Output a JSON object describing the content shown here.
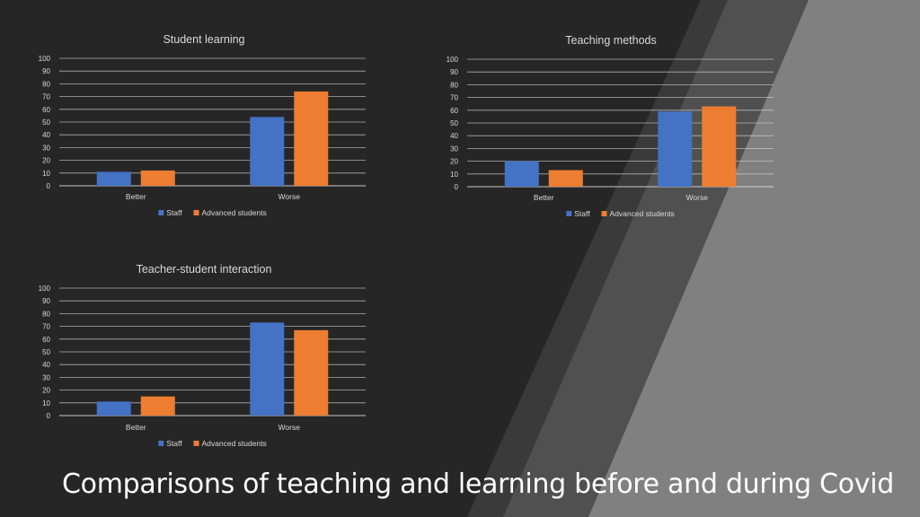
{
  "slide": {
    "title": "Comparisons of teaching and learning before and during Covid"
  },
  "colors": {
    "background": "#262626",
    "stripe_dark": "#3f3f3f",
    "stripe_mid": "#595959",
    "stripe_light": "#7f7f7f",
    "staff": "#4472c4",
    "advanced_students": "#ed7d31",
    "text": "#d9d9d9",
    "grid": "#d9d9d9"
  },
  "chart_data": [
    {
      "type": "bar",
      "title": "Student learning",
      "categories": [
        "Better",
        "Worse"
      ],
      "series": [
        {
          "name": "Staff",
          "values": [
            11,
            54
          ]
        },
        {
          "name": "Advanced students",
          "values": [
            12,
            74
          ]
        }
      ],
      "ylim": [
        0,
        100
      ],
      "yticks": [
        "0",
        "10",
        "20",
        "30",
        "40",
        "50",
        "60",
        "70",
        "80",
        "90",
        "100"
      ],
      "grid": true,
      "legend": "bottom"
    },
    {
      "type": "bar",
      "title": "Teaching methods",
      "categories": [
        "Better",
        "Worse"
      ],
      "series": [
        {
          "name": "Staff",
          "values": [
            20,
            59
          ]
        },
        {
          "name": "Advanced students",
          "values": [
            13,
            63
          ]
        }
      ],
      "ylim": [
        0,
        100
      ],
      "yticks": [
        "0",
        "10",
        "20",
        "30",
        "40",
        "50",
        "60",
        "70",
        "80",
        "90",
        "100"
      ],
      "grid": true,
      "legend": "bottom"
    },
    {
      "type": "bar",
      "title": "Teacher-student interaction",
      "categories": [
        "Better",
        "Worse"
      ],
      "series": [
        {
          "name": "Staff",
          "values": [
            11,
            73
          ]
        },
        {
          "name": "Advanced students",
          "values": [
            15,
            67
          ]
        }
      ],
      "ylim": [
        0,
        100
      ],
      "yticks": [
        "0",
        "10",
        "20",
        "30",
        "40",
        "50",
        "60",
        "70",
        "80",
        "90",
        "100"
      ],
      "grid": true,
      "legend": "bottom"
    }
  ]
}
